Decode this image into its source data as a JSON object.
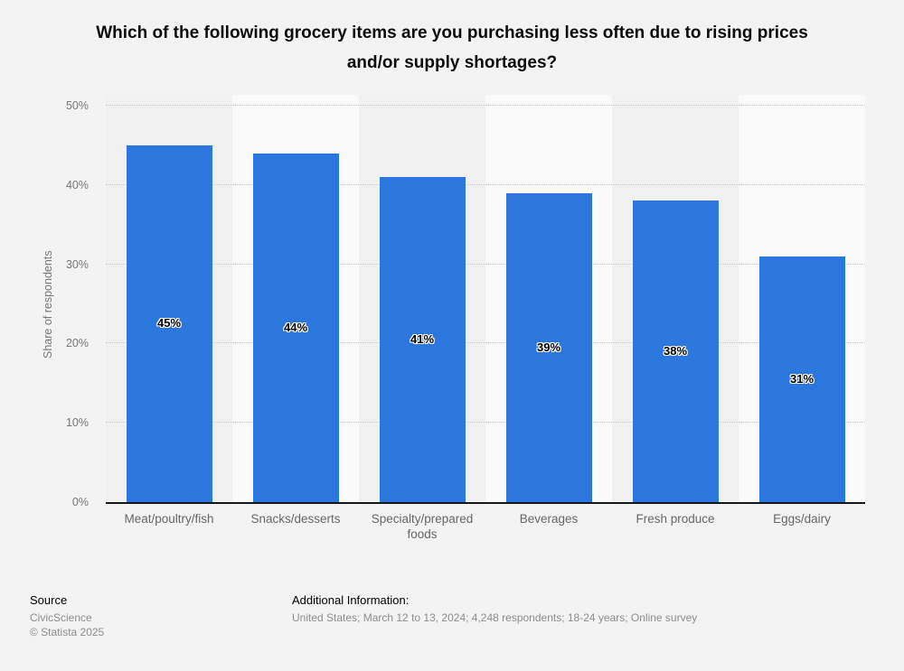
{
  "chart_data": {
    "type": "bar",
    "title": "Which of the following grocery items are you purchasing less often due to rising prices and/or supply shortages?",
    "categories": [
      "Meat/poultry/fish",
      "Snacks/desserts",
      "Specialty/prepared foods",
      "Beverages",
      "Fresh produce",
      "Eggs/dairy"
    ],
    "values": [
      45,
      44,
      41,
      39,
      38,
      31
    ],
    "data_labels": [
      "45%",
      "44%",
      "41%",
      "39%",
      "38%",
      "31%"
    ],
    "xlabel": "",
    "ylabel": "Share of respondents",
    "ylim": [
      0,
      50
    ],
    "yticks": [
      "0%",
      "10%",
      "20%",
      "30%",
      "40%",
      "50%"
    ],
    "ytick_values": [
      0,
      10,
      20,
      30,
      40,
      50
    ],
    "grid": "horizontal dotted",
    "legend": "none",
    "bar_color": "#2b77de"
  },
  "colors": {
    "page_background": "#f3f3f3",
    "band_dark": "#f0f0f0",
    "band_light": "#fafafa",
    "gridline": "#c6c6c6",
    "axis_line": "#161616",
    "axis_text": "#767676",
    "category_text": "#666666",
    "footer_text_gray": "#8c8c8c"
  },
  "footer": {
    "source_label": "Source",
    "source_value": "CivicScience",
    "copyright": "© Statista 2025",
    "additional_label": "Additional Information:",
    "additional_value": "United States; March 12 to 13, 2024; 4,248 respondents; 18-24 years; Online survey"
  }
}
